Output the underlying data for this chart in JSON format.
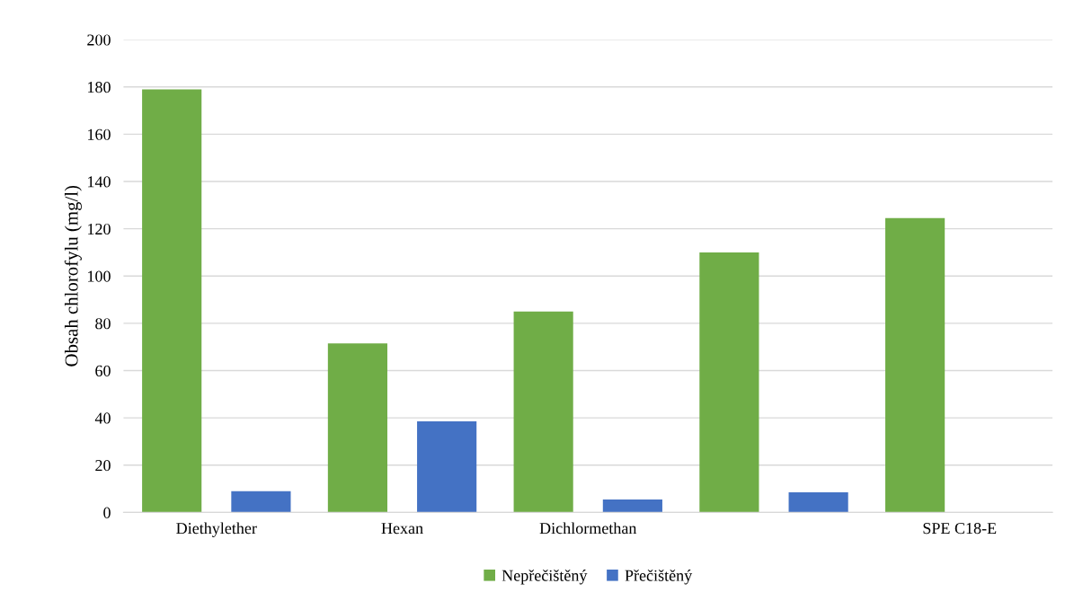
{
  "chart_data": {
    "type": "bar",
    "ylabel": "Obsah chlorofylu (mg/l)",
    "categories": [
      "Diethylether",
      "Hexan",
      "Dichlormethan",
      null,
      "SPE C18-E"
    ],
    "series": [
      {
        "name": "Nepřečištěný",
        "color": "#70ad47",
        "values": [
          179,
          71.5,
          85,
          110,
          124.5
        ]
      },
      {
        "name": "Přečištěný",
        "color": "#4472c4",
        "values": [
          9,
          38.5,
          5.5,
          8.5,
          null
        ]
      }
    ],
    "ylim": [
      0,
      200
    ],
    "yticks": [
      0,
      20,
      40,
      60,
      80,
      100,
      120,
      140,
      160,
      180,
      200
    ],
    "grid": "y",
    "legend": "bottom"
  }
}
